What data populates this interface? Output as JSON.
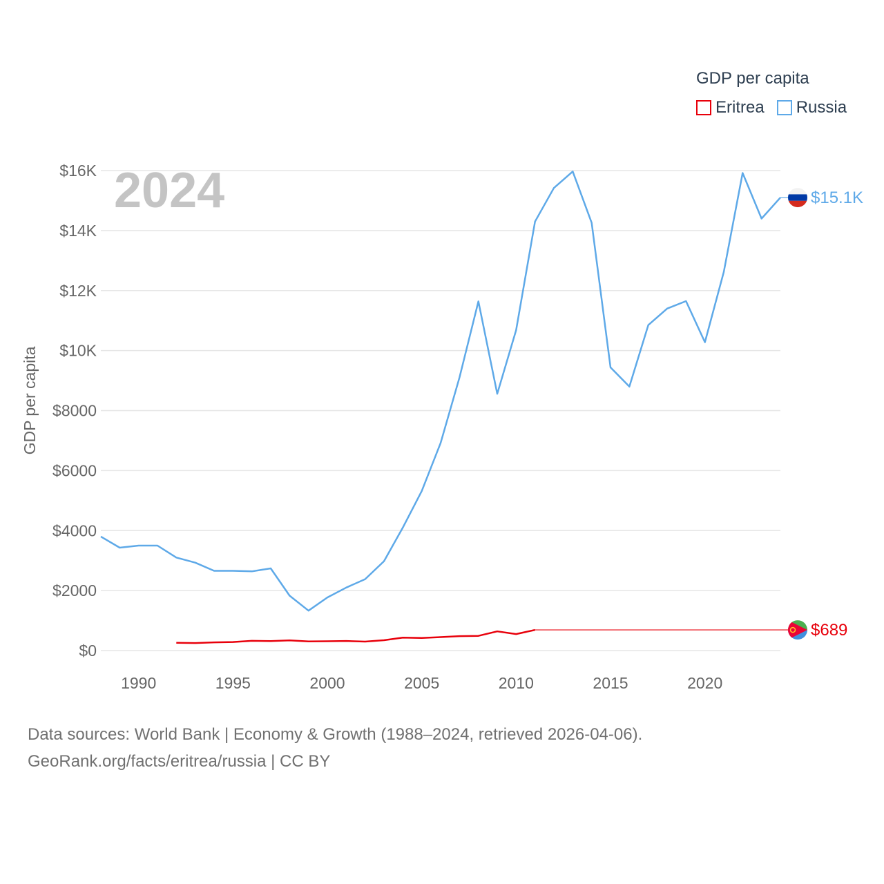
{
  "legend": {
    "title": "GDP per capita"
  },
  "year_label": "2024",
  "source": {
    "line1": "Data sources: World Bank | Economy & Growth (1988–2024, retrieved 2026-04-06).",
    "line2": "GeoRank.org/facts/eritrea/russia | CC BY"
  },
  "chart_data": {
    "type": "line",
    "title": "",
    "xlabel": "",
    "ylabel": "GDP per capita",
    "xlim": [
      1988,
      2024
    ],
    "ylim": [
      0,
      16000
    ],
    "grid": true,
    "legend_position": "top-right",
    "x_ticks": [
      1990,
      1995,
      2000,
      2005,
      2010,
      2015,
      2020
    ],
    "y_ticks": [
      {
        "value": 0,
        "label": "$0"
      },
      {
        "value": 2000,
        "label": "$2000"
      },
      {
        "value": 4000,
        "label": "$4000"
      },
      {
        "value": 6000,
        "label": "$6000"
      },
      {
        "value": 8000,
        "label": "$8000"
      },
      {
        "value": 10000,
        "label": "$10K"
      },
      {
        "value": 12000,
        "label": "$12K"
      },
      {
        "value": 14000,
        "label": "$14K"
      },
      {
        "value": 16000,
        "label": "$16K"
      }
    ],
    "series": [
      {
        "name": "Eritrea",
        "color": "#e8000b",
        "end_label": "$689",
        "end_value": 689,
        "flag": "eritrea-flag-icon",
        "x": [
          1992,
          1993,
          1994,
          1995,
          1996,
          1997,
          1998,
          1999,
          2000,
          2001,
          2002,
          2003,
          2004,
          2005,
          2006,
          2007,
          2008,
          2009,
          2010,
          2011
        ],
        "values": [
          260,
          250,
          275,
          285,
          325,
          315,
          340,
          305,
          310,
          320,
          300,
          345,
          430,
          420,
          450,
          480,
          490,
          640,
          550,
          689
        ]
      },
      {
        "name": "Russia",
        "color": "#5ea9e8",
        "end_label": "$15.1K",
        "end_value": 15100,
        "flag": "russia-flag-icon",
        "x": [
          1988,
          1989,
          1990,
          1991,
          1992,
          1993,
          1994,
          1995,
          1996,
          1997,
          1998,
          1999,
          2000,
          2001,
          2002,
          2003,
          2004,
          2005,
          2006,
          2007,
          2008,
          2009,
          2010,
          2011,
          2012,
          2013,
          2014,
          2015,
          2016,
          2017,
          2018,
          2019,
          2020,
          2021,
          2022,
          2023,
          2024
        ],
        "values": [
          3800,
          3430,
          3500,
          3500,
          3100,
          2930,
          2660,
          2660,
          2640,
          2740,
          1830,
          1330,
          1770,
          2100,
          2380,
          2980,
          4100,
          5320,
          6920,
          9100,
          11640,
          8560,
          10680,
          14300,
          15420,
          15970,
          14260,
          9440,
          8800,
          10850,
          11400,
          11650,
          10280,
          12620,
          15920,
          14400,
          15100
        ]
      }
    ]
  }
}
